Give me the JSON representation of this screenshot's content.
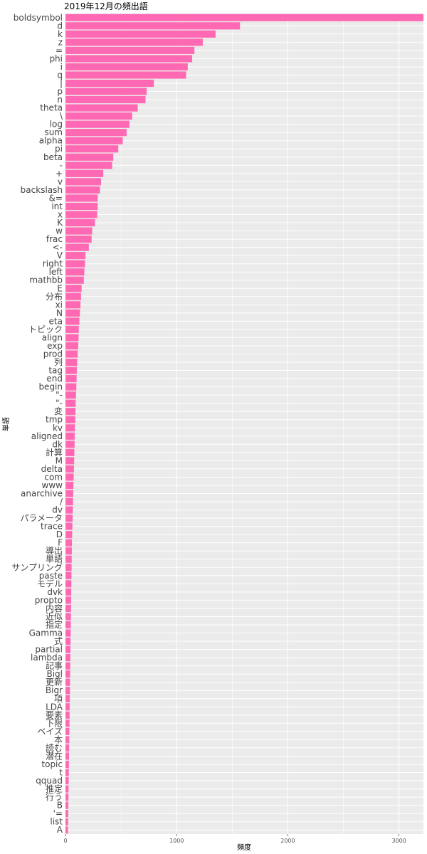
{
  "chart_data": {
    "type": "bar",
    "orientation": "horizontal",
    "title": "2019年12月の頻出語",
    "xlabel": "頻度",
    "ylabel": "単語",
    "xlim": [
      0,
      3220
    ],
    "x_ticks": [
      0,
      1000,
      2000,
      3000
    ],
    "grid": true,
    "bar_color": "#FF69B4",
    "panel_background": "#EBEBEB",
    "categories": [
      "boldsymbol",
      "d",
      "k",
      "z",
      "=",
      "phi",
      "i",
      "q",
      "|",
      "p",
      "n",
      "theta",
      "\\",
      "log",
      "sum",
      "alpha",
      "pi",
      "beta",
      "-",
      "+",
      "v",
      "backslash",
      "&=",
      "int",
      "x",
      "K",
      "w",
      "frac",
      "<-",
      "V",
      "right",
      "left",
      "mathbb",
      "E",
      "分布",
      "xi",
      "N",
      "eta",
      "トピック",
      "align",
      "exp",
      "prod",
      "列",
      "tag",
      "end",
      "begin",
      "\"-",
      "\"-",
      "変",
      "tmp",
      "kv",
      "aligned",
      "dk",
      "計算",
      "M",
      "delta",
      "com",
      "www",
      "anarchive",
      "/",
      "dv",
      "パラメータ",
      "trace",
      "D",
      "F",
      "導出",
      "単語",
      "サンプリング",
      "paste",
      "モデル",
      "dvk",
      "propto",
      "内容",
      "近似",
      "指定",
      "Gamma",
      "式",
      "partial",
      "lambda",
      "記事",
      "Bigl",
      "更新",
      "Bigr",
      "項",
      "LDA",
      "要素",
      "下限",
      "ベイズ",
      "本",
      "読む",
      "潜在",
      "topic",
      "t",
      "qquad",
      "推定",
      "行う",
      "B",
      "'=",
      "list",
      "A"
    ],
    "values": [
      3220,
      1570,
      1350,
      1235,
      1160,
      1140,
      1100,
      1085,
      795,
      730,
      720,
      650,
      600,
      575,
      550,
      515,
      475,
      430,
      420,
      340,
      320,
      310,
      290,
      290,
      285,
      265,
      240,
      235,
      210,
      180,
      175,
      170,
      165,
      145,
      140,
      135,
      130,
      125,
      120,
      118,
      115,
      110,
      105,
      102,
      100,
      98,
      95,
      92,
      90,
      88,
      85,
      83,
      82,
      80,
      78,
      76,
      74,
      72,
      70,
      68,
      66,
      64,
      62,
      60,
      58,
      57,
      56,
      55,
      54,
      53,
      52,
      51,
      50,
      49,
      48,
      47,
      46,
      45,
      44,
      43,
      42,
      41,
      40,
      39,
      38,
      37,
      36,
      35,
      34,
      33,
      32,
      31,
      30,
      29,
      28,
      27,
      26,
      25,
      24,
      23
    ]
  }
}
